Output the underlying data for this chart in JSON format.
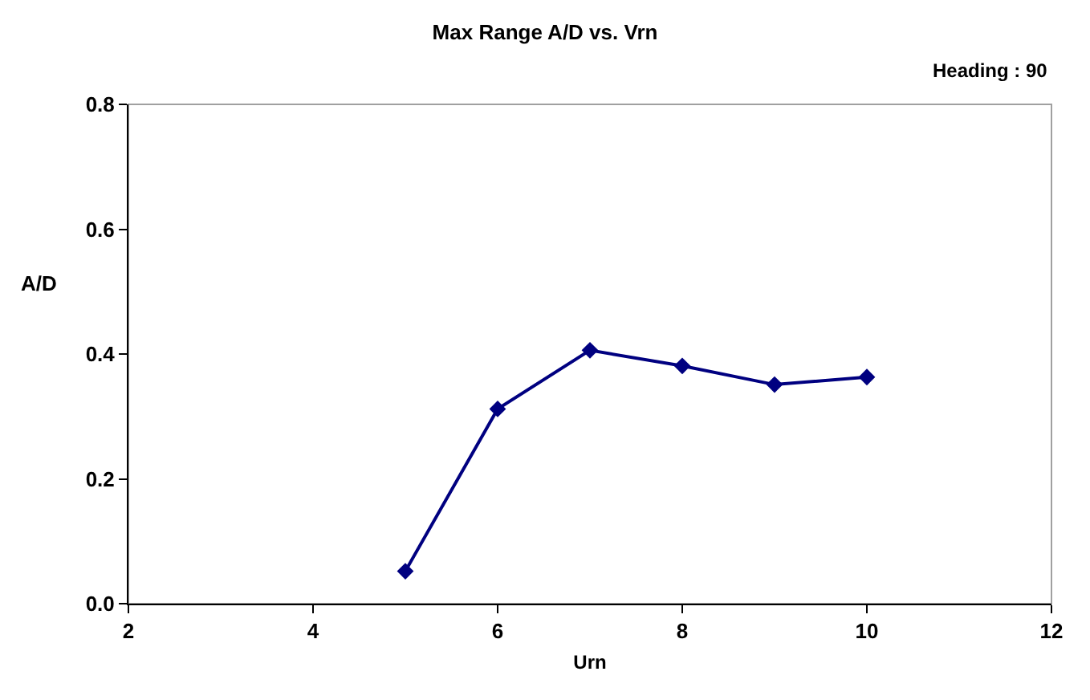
{
  "chart_data": {
    "type": "line",
    "title": "Max Range A/D vs. Vrn",
    "xlabel": "Urn",
    "ylabel": "A/D",
    "annotations": [
      "Heading : 90"
    ],
    "x": [
      5,
      6,
      7,
      8,
      9,
      10
    ],
    "series": [
      {
        "color": "#000080",
        "values": [
          0.052,
          0.312,
          0.406,
          0.381,
          0.351,
          0.363
        ]
      }
    ],
    "xlim": [
      2,
      12
    ],
    "xticks": [
      2,
      4,
      6,
      8,
      10,
      12
    ],
    "ylim": [
      0,
      0.8
    ],
    "yticks": [
      {
        "value": 0,
        "label": "0.0"
      },
      0.2,
      0.4,
      0.6,
      0.8
    ],
    "grid": false,
    "marker": "diamond",
    "line_style": "solid"
  }
}
